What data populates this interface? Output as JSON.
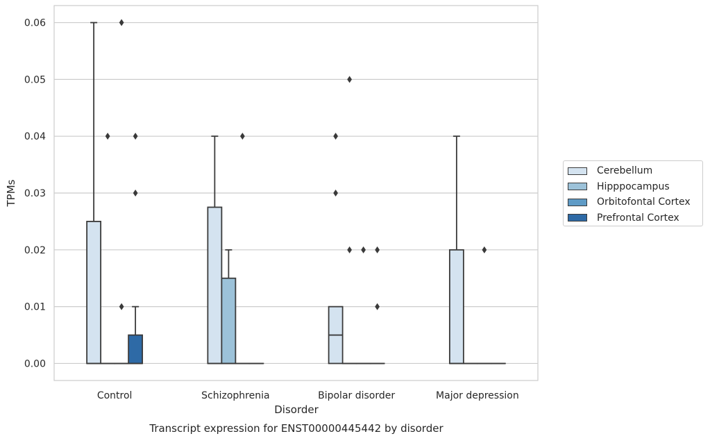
{
  "chart_data": {
    "type": "box",
    "title": "Transcript expression for ENST00000445442 by disorder",
    "xlabel": "Disorder",
    "ylabel": "TPMs",
    "ylim": [
      -0.003,
      0.063
    ],
    "yticks": [
      "0.00",
      "0.01",
      "0.02",
      "0.03",
      "0.04",
      "0.05",
      "0.06"
    ],
    "grid": true,
    "legend_position": "right",
    "categories": [
      "Control",
      "Schizophrenia",
      "Bipolar disorder",
      "Major depression"
    ],
    "series": [
      {
        "name": "Cerebellum",
        "color": "#d4e3f0",
        "boxes": [
          {
            "q1": 0,
            "median": 0,
            "q3": 0.025,
            "whisker_low": 0,
            "whisker_high": 0.06,
            "outliers": []
          },
          {
            "q1": 0,
            "median": 0,
            "q3": 0.0275,
            "whisker_low": 0,
            "whisker_high": 0.04,
            "outliers": []
          },
          {
            "q1": 0,
            "median": 0.005,
            "q3": 0.01,
            "whisker_low": 0,
            "whisker_high": 0.01,
            "outliers": [
              0.04,
              0.03
            ]
          },
          {
            "q1": 0,
            "median": 0,
            "q3": 0.02,
            "whisker_low": 0,
            "whisker_high": 0.04,
            "outliers": []
          }
        ]
      },
      {
        "name": "Hipppocampus",
        "color": "#9cc2d9",
        "boxes": [
          {
            "q1": 0,
            "median": 0,
            "q3": 0,
            "whisker_low": 0,
            "whisker_high": 0,
            "outliers": [
              0.04
            ]
          },
          {
            "q1": 0,
            "median": 0,
            "q3": 0.015,
            "whisker_low": 0,
            "whisker_high": 0.02,
            "outliers": []
          },
          {
            "q1": 0,
            "median": 0,
            "q3": 0,
            "whisker_low": 0,
            "whisker_high": 0,
            "outliers": [
              0.05,
              0.02
            ]
          },
          {
            "q1": 0,
            "median": 0,
            "q3": 0,
            "whisker_low": 0,
            "whisker_high": 0,
            "outliers": []
          }
        ]
      },
      {
        "name": "Orbitofontal Cortex",
        "color": "#5f9bc6",
        "boxes": [
          {
            "q1": 0,
            "median": 0,
            "q3": 0,
            "whisker_low": 0,
            "whisker_high": 0,
            "outliers": [
              0.06,
              0.01
            ]
          },
          {
            "q1": 0,
            "median": 0,
            "q3": 0,
            "whisker_low": 0,
            "whisker_high": 0,
            "outliers": [
              0.04
            ]
          },
          {
            "q1": 0,
            "median": 0,
            "q3": 0,
            "whisker_low": 0,
            "whisker_high": 0,
            "outliers": [
              0.02
            ]
          },
          {
            "q1": 0,
            "median": 0,
            "q3": 0,
            "whisker_low": 0,
            "whisker_high": 0,
            "outliers": [
              0.02
            ]
          }
        ]
      },
      {
        "name": "Prefrontal Cortex",
        "color": "#2e6aa6",
        "boxes": [
          {
            "q1": 0,
            "median": 0,
            "q3": 0.005,
            "whisker_low": 0,
            "whisker_high": 0.01,
            "outliers": [
              0.04,
              0.03
            ]
          },
          {
            "q1": 0,
            "median": 0,
            "q3": 0,
            "whisker_low": 0,
            "whisker_high": 0,
            "outliers": []
          },
          {
            "q1": 0,
            "median": 0,
            "q3": 0,
            "whisker_low": 0,
            "whisker_high": 0,
            "outliers": [
              0.02,
              0.01
            ]
          },
          {
            "q1": 0,
            "median": 0,
            "q3": 0,
            "whisker_low": 0,
            "whisker_high": 0,
            "outliers": []
          }
        ]
      }
    ]
  }
}
